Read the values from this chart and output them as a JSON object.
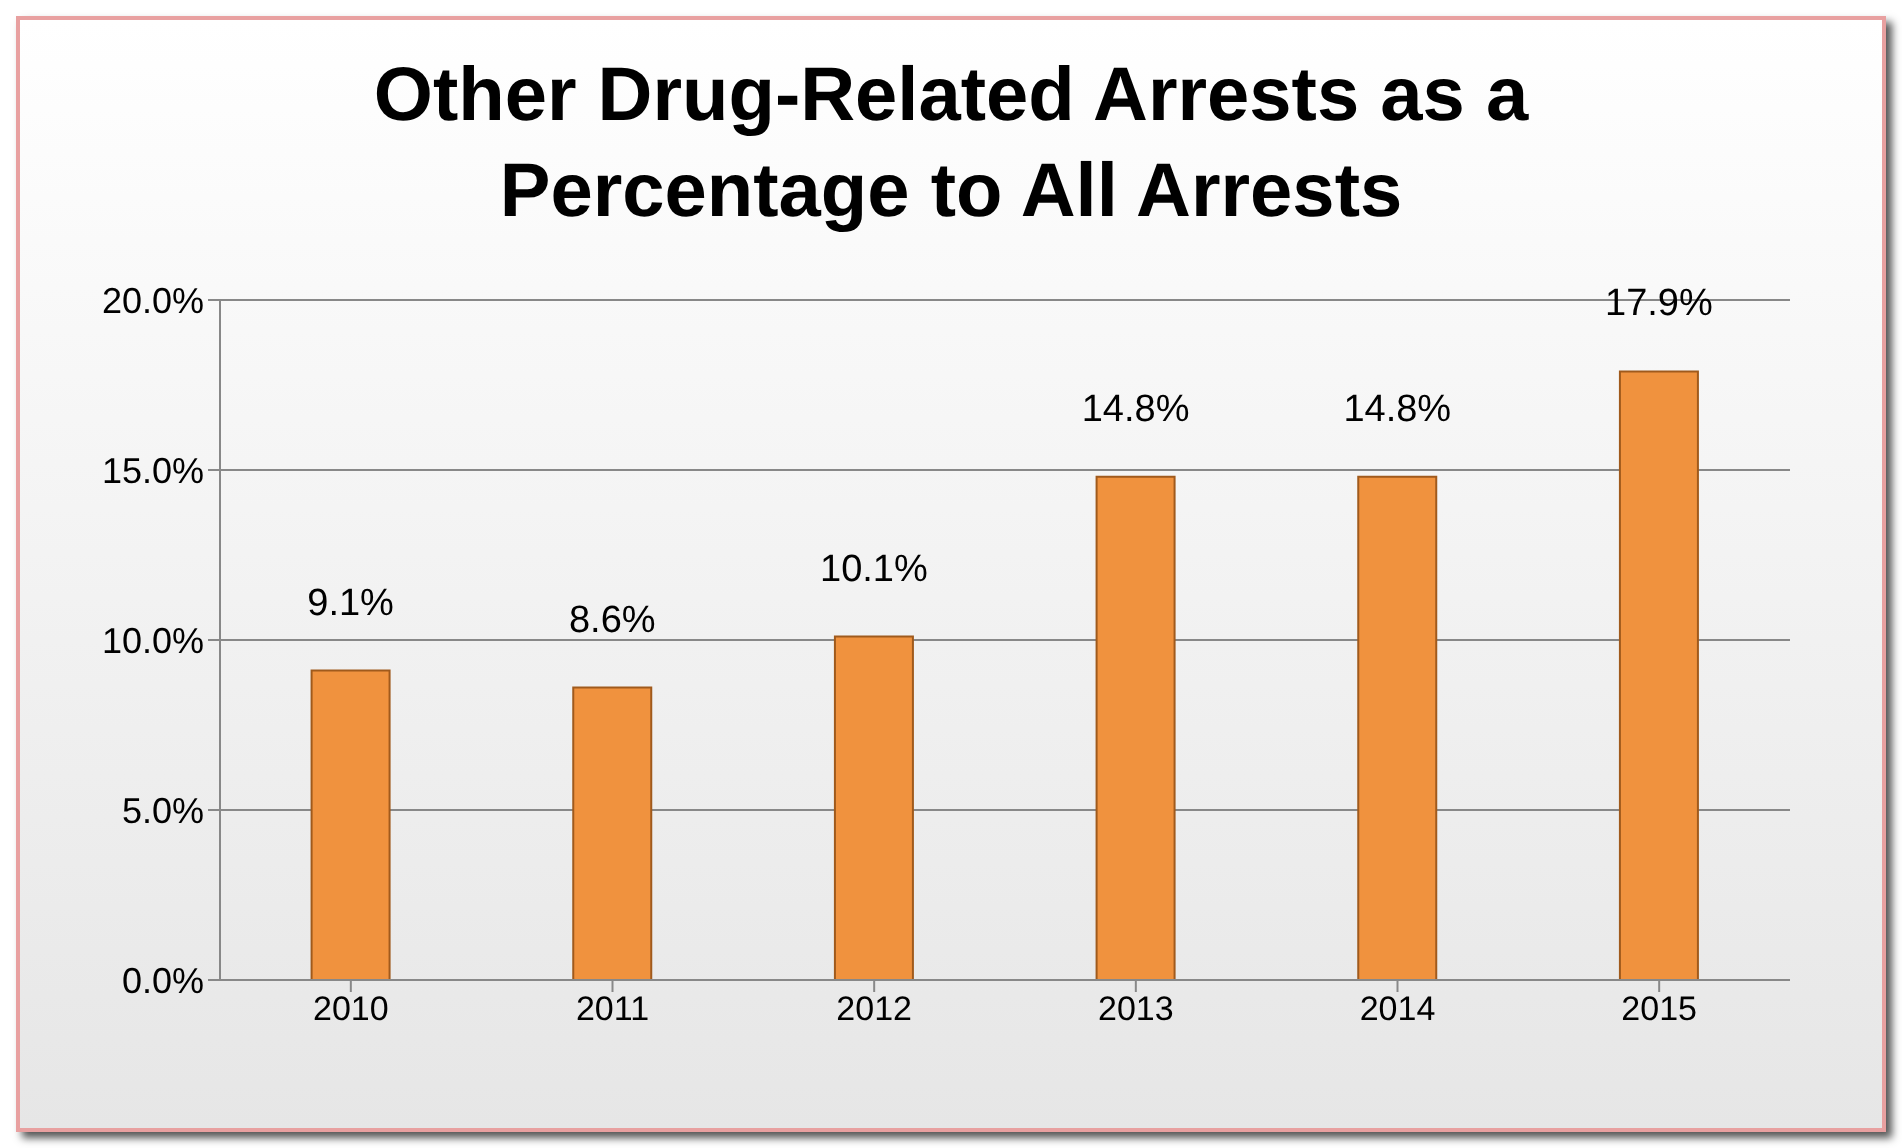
{
  "chart_data": {
    "type": "bar",
    "title": "Other Drug-Related Arrests as a Percentage to All Arrests",
    "categories": [
      "2010",
      "2011",
      "2012",
      "2013",
      "2014",
      "2015"
    ],
    "values": [
      9.1,
      8.6,
      10.1,
      14.8,
      14.8,
      17.9
    ],
    "value_labels": [
      "9.1%",
      "8.6%",
      "10.1%",
      "14.8%",
      "14.8%",
      "17.9%"
    ],
    "color": "#f0923e",
    "ylim": [
      0,
      20
    ],
    "yticks": [
      {
        "value": 0,
        "label": "0.0%"
      },
      {
        "value": 5,
        "label": "5.0%"
      },
      {
        "value": 10,
        "label": "10.0%"
      },
      {
        "value": 15,
        "label": "15.0%"
      },
      {
        "value": 20,
        "label": "20.0%"
      }
    ],
    "grid": "y"
  }
}
